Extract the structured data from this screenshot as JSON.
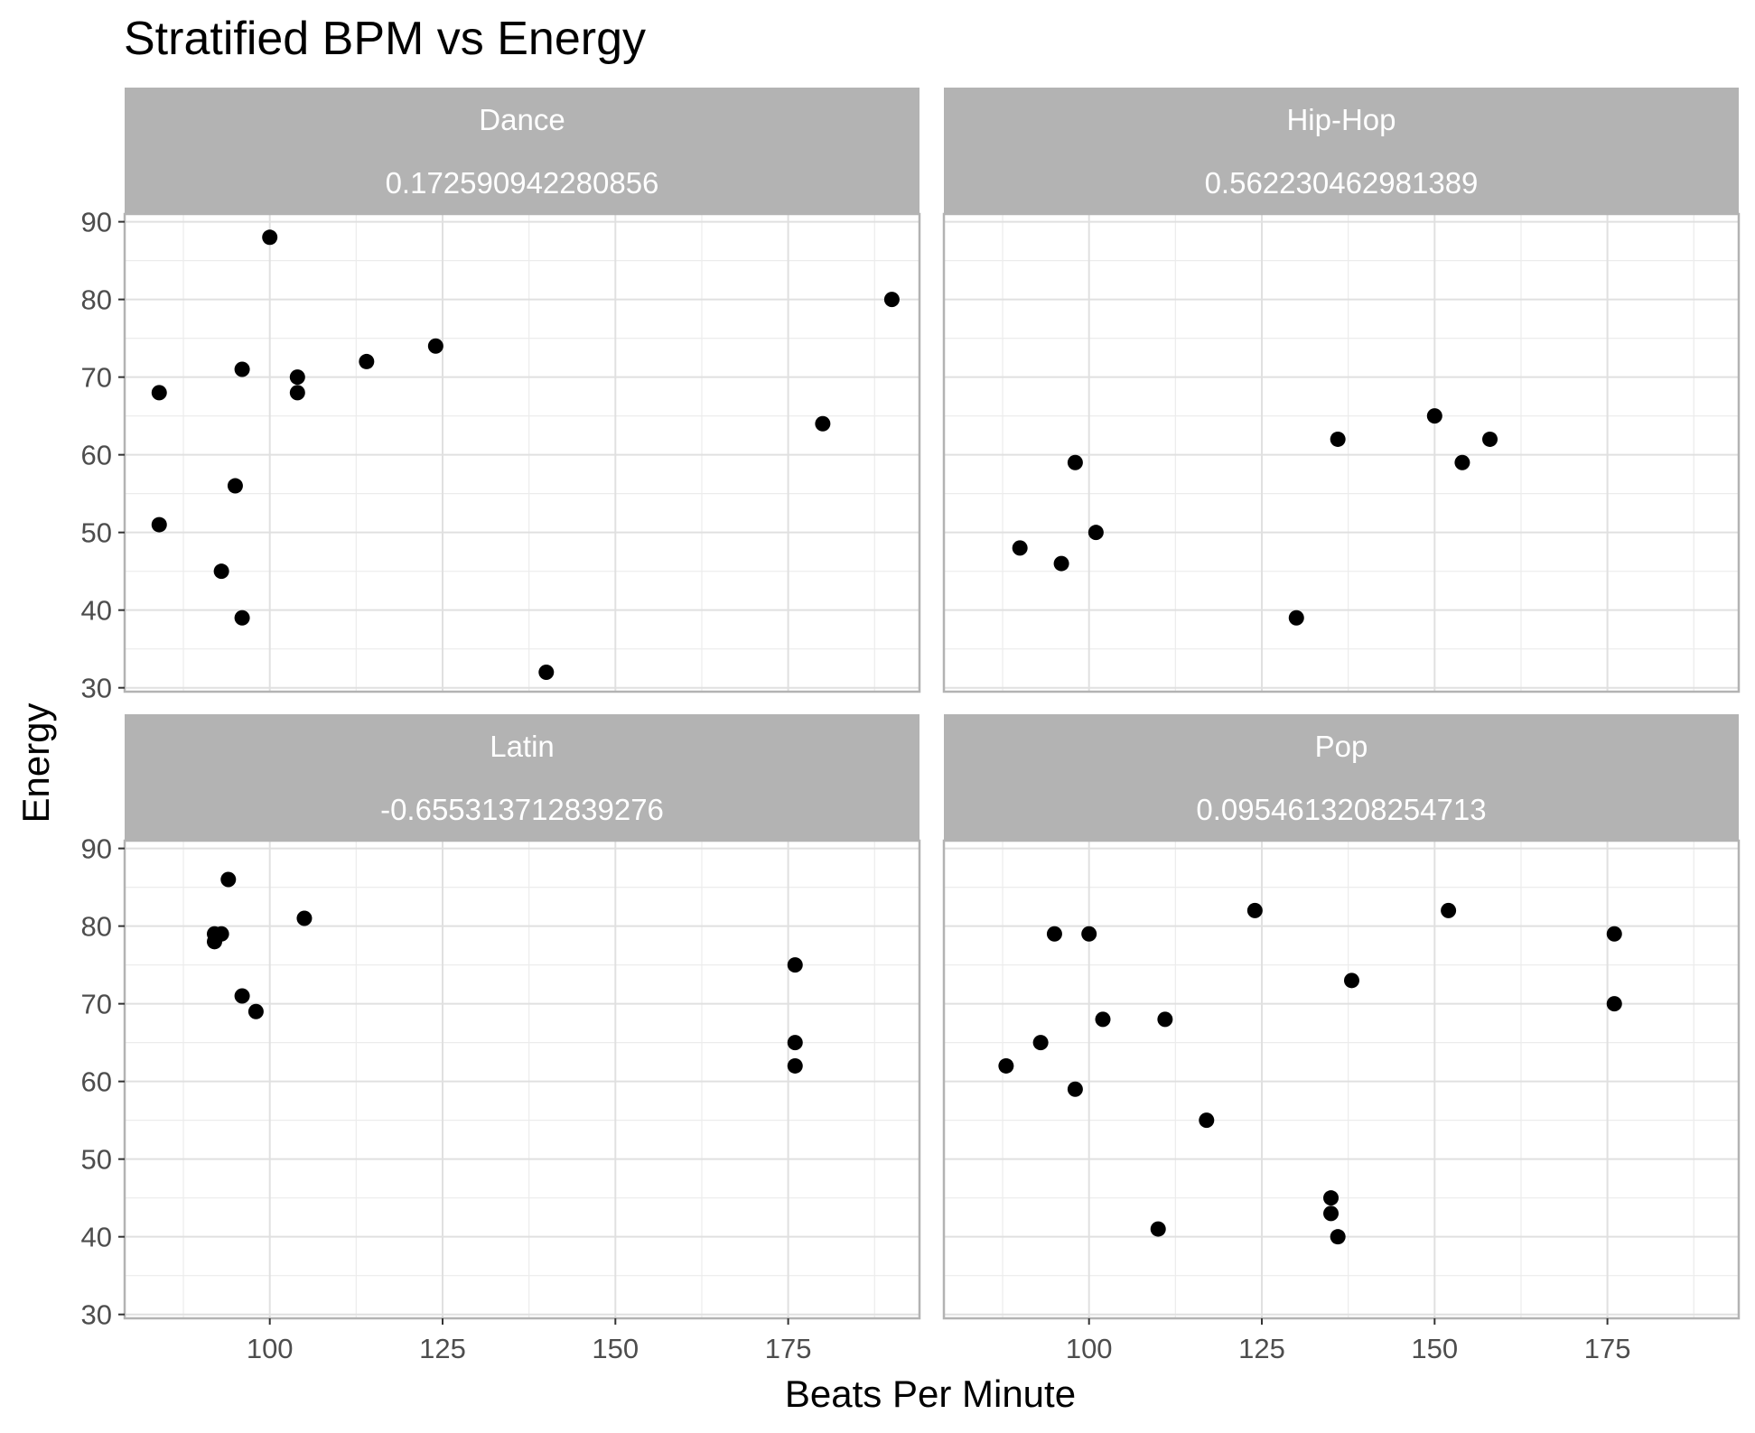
{
  "chart_data": {
    "type": "scatter",
    "title": "Stratified BPM vs Energy",
    "xlabel": "Beats Per Minute",
    "ylabel": "Energy",
    "xlim": [
      79,
      194
    ],
    "ylim": [
      29.5,
      91
    ],
    "x_ticks": [
      100,
      125,
      150,
      175
    ],
    "y_ticks": [
      30,
      40,
      50,
      60,
      70,
      80,
      90
    ],
    "grid": true,
    "colors": {
      "point": "#000000",
      "strip": "#b3b3b3",
      "grid": "#e0e0e0",
      "panel_border": "#b3b3b3"
    },
    "panels": [
      {
        "genre": "Dance",
        "correlation": "0.172590942280856",
        "points": [
          {
            "x": 84,
            "y": 68
          },
          {
            "x": 84,
            "y": 51
          },
          {
            "x": 93,
            "y": 45
          },
          {
            "x": 95,
            "y": 56
          },
          {
            "x": 96,
            "y": 71
          },
          {
            "x": 96,
            "y": 39
          },
          {
            "x": 100,
            "y": 88
          },
          {
            "x": 104,
            "y": 70
          },
          {
            "x": 104,
            "y": 68
          },
          {
            "x": 114,
            "y": 72
          },
          {
            "x": 124,
            "y": 74
          },
          {
            "x": 140,
            "y": 32
          },
          {
            "x": 180,
            "y": 64
          },
          {
            "x": 190,
            "y": 80
          }
        ]
      },
      {
        "genre": "Hip-Hop",
        "correlation": "0.562230462981389",
        "points": [
          {
            "x": 90,
            "y": 48
          },
          {
            "x": 96,
            "y": 46
          },
          {
            "x": 98,
            "y": 59
          },
          {
            "x": 101,
            "y": 50
          },
          {
            "x": 130,
            "y": 39
          },
          {
            "x": 136,
            "y": 62
          },
          {
            "x": 150,
            "y": 65
          },
          {
            "x": 154,
            "y": 59
          },
          {
            "x": 158,
            "y": 62
          }
        ]
      },
      {
        "genre": "Latin",
        "correlation": "-0.655313712839276",
        "points": [
          {
            "x": 92,
            "y": 79
          },
          {
            "x": 92,
            "y": 78
          },
          {
            "x": 93,
            "y": 79
          },
          {
            "x": 94,
            "y": 86
          },
          {
            "x": 96,
            "y": 71
          },
          {
            "x": 98,
            "y": 69
          },
          {
            "x": 105,
            "y": 81
          },
          {
            "x": 176,
            "y": 75
          },
          {
            "x": 176,
            "y": 65
          },
          {
            "x": 176,
            "y": 62
          }
        ]
      },
      {
        "genre": "Pop",
        "correlation": "0.0954613208254713",
        "points": [
          {
            "x": 88,
            "y": 62
          },
          {
            "x": 93,
            "y": 65
          },
          {
            "x": 95,
            "y": 79
          },
          {
            "x": 98,
            "y": 59
          },
          {
            "x": 100,
            "y": 79
          },
          {
            "x": 102,
            "y": 68
          },
          {
            "x": 110,
            "y": 41
          },
          {
            "x": 111,
            "y": 68
          },
          {
            "x": 117,
            "y": 55
          },
          {
            "x": 124,
            "y": 82
          },
          {
            "x": 135,
            "y": 45
          },
          {
            "x": 135,
            "y": 43
          },
          {
            "x": 136,
            "y": 40
          },
          {
            "x": 138,
            "y": 73
          },
          {
            "x": 152,
            "y": 82
          },
          {
            "x": 176,
            "y": 79
          },
          {
            "x": 176,
            "y": 70
          }
        ]
      }
    ]
  }
}
